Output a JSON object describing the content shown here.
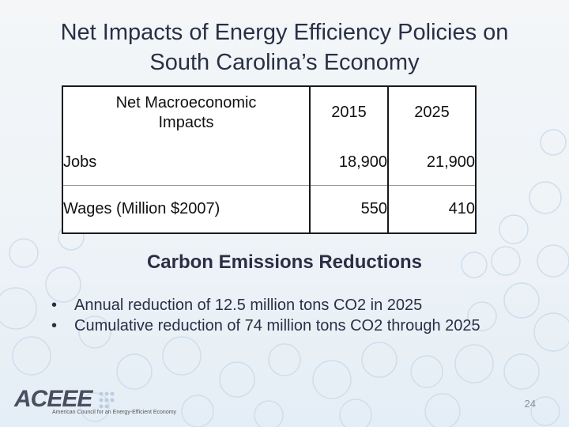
{
  "slide": {
    "title_line1": "Net Impacts of Energy Efficiency Policies on",
    "title_line2": "South Carolina’s Economy",
    "page_number": "24"
  },
  "table": {
    "header": {
      "label_line1": "Net Macroeconomic",
      "label_line2": "Impacts",
      "col1": "2015",
      "col2": "2025"
    },
    "rows": [
      {
        "label": "Jobs",
        "v2015": "18,900",
        "v2025": "21,900"
      },
      {
        "label": "Wages (Million $2007)",
        "v2015": "550",
        "v2025": "410"
      }
    ]
  },
  "carbon": {
    "heading": "Carbon Emissions Reductions",
    "bullets": [
      "Annual reduction of 12.5 million tons CO2 in 2025",
      "Cumulative reduction of 74 million tons CO2 through 2025"
    ]
  },
  "logo": {
    "wordmark": "ACEEE",
    "tagline": "American Council for an Energy-Efficient Economy",
    "color": "#4a4f5f",
    "accent": "#b8cde4"
  }
}
